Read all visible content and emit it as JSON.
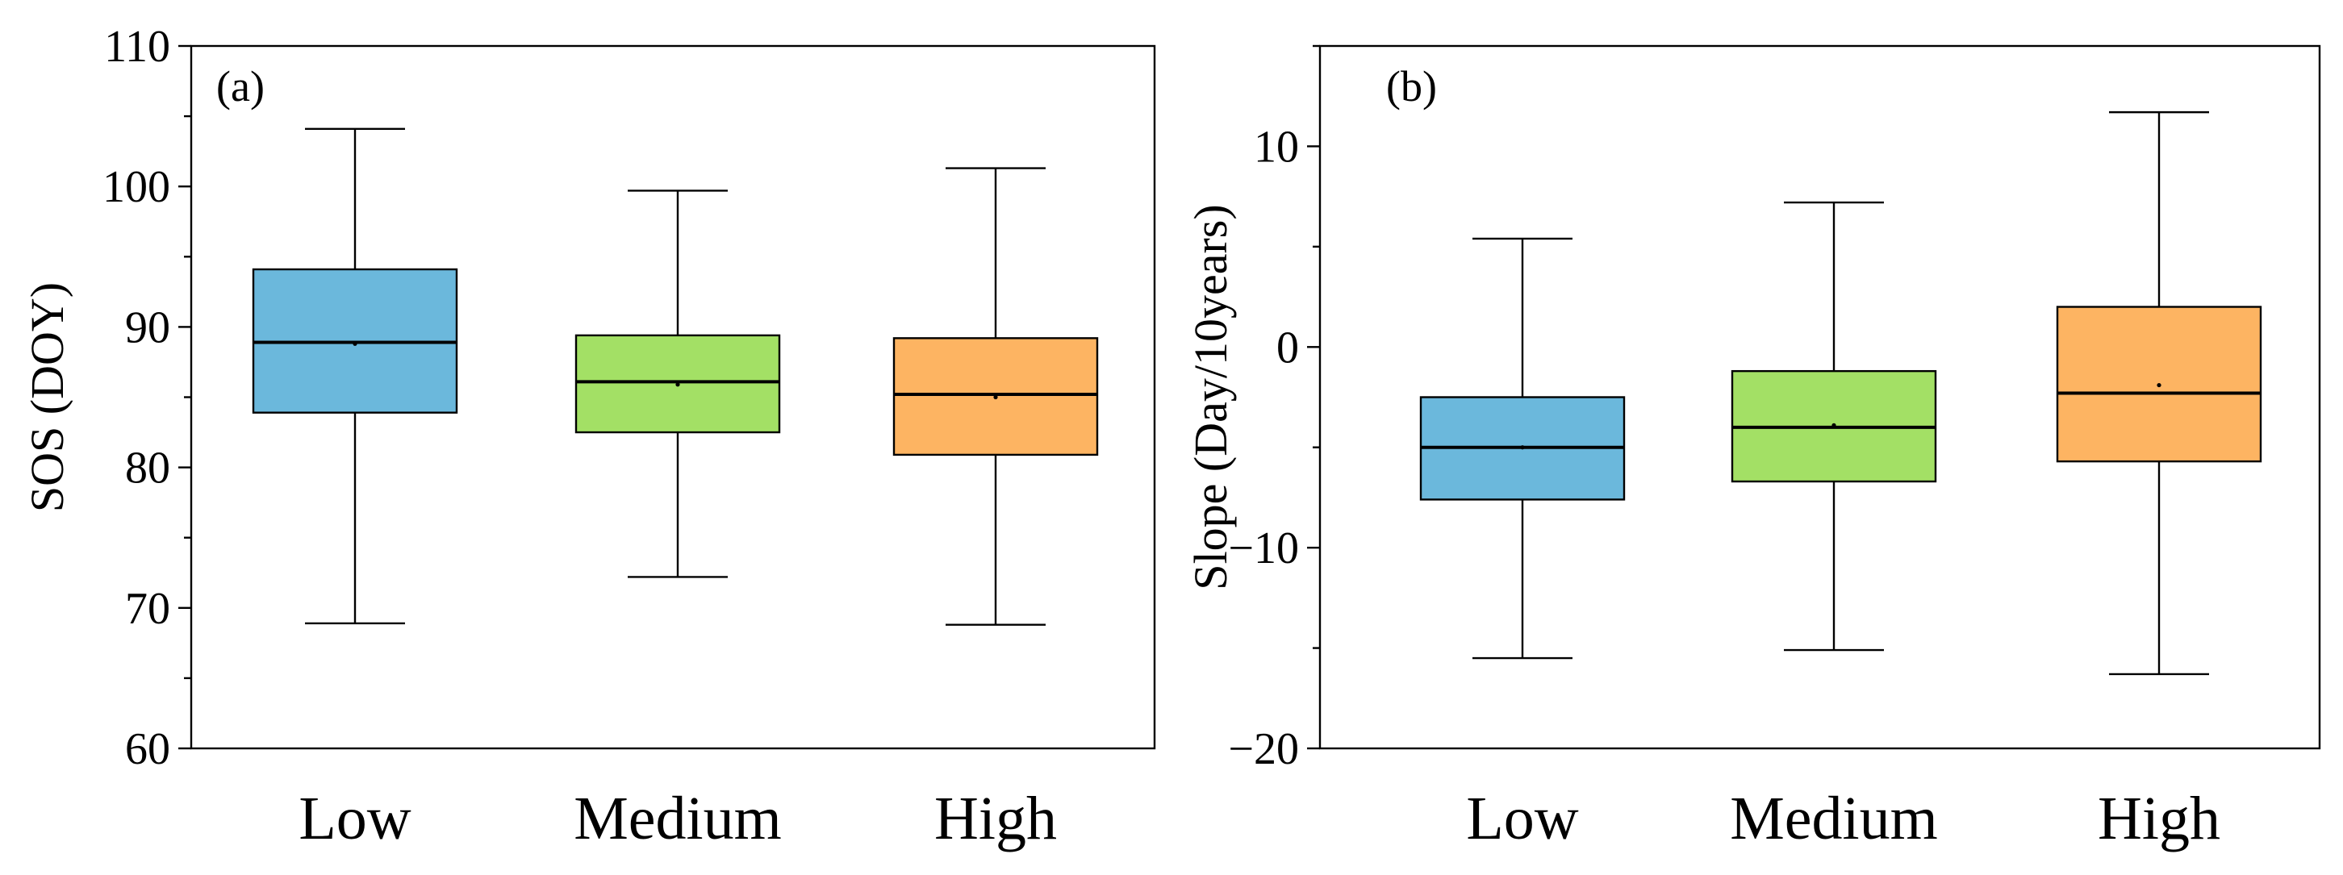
{
  "chart_data": [
    {
      "type": "box",
      "panel_label": "(a)",
      "ylabel": "SOS (DOY)",
      "xlabel": "",
      "ylim": [
        60,
        110
      ],
      "yticks": [
        60,
        70,
        80,
        90,
        100,
        110
      ],
      "categories": [
        "Low",
        "Medium",
        "High"
      ],
      "colors": [
        "#6bb8dc",
        "#a3e065",
        "#fdb462"
      ],
      "boxes": [
        {
          "category": "Low",
          "min": 68.9,
          "q1": 83.9,
          "median": 88.9,
          "mean": 88.8,
          "q3": 94.1,
          "max": 104.1
        },
        {
          "category": "Medium",
          "min": 72.2,
          "q1": 82.5,
          "median": 86.1,
          "mean": 85.9,
          "q3": 89.4,
          "max": 99.7
        },
        {
          "category": "High",
          "min": 68.8,
          "q1": 80.9,
          "median": 85.2,
          "mean": 85.0,
          "q3": 89.2,
          "max": 101.3
        }
      ]
    },
    {
      "type": "box",
      "panel_label": "(b)",
      "ylabel": "Slope (Day/10years)",
      "xlabel": "",
      "ylim": [
        -20,
        15
      ],
      "yticks": [
        -20,
        -10,
        0,
        10
      ],
      "ytick_labels": [
        "−20",
        "−10",
        "0",
        "10"
      ],
      "categories": [
        "Low",
        "Medium",
        "High"
      ],
      "colors": [
        "#6bb8dc",
        "#a3e065",
        "#fdb462"
      ],
      "boxes": [
        {
          "category": "Low",
          "min": -15.5,
          "q1": -7.6,
          "median": -5.0,
          "mean": -5.0,
          "q3": -2.5,
          "max": 5.4
        },
        {
          "category": "Medium",
          "min": -15.1,
          "q1": -6.7,
          "median": -4.0,
          "mean": -3.9,
          "q3": -1.2,
          "max": 7.2
        },
        {
          "category": "High",
          "min": -16.3,
          "q1": -5.7,
          "median": -2.3,
          "mean": -1.9,
          "q3": 2.0,
          "max": 11.7
        }
      ]
    }
  ]
}
